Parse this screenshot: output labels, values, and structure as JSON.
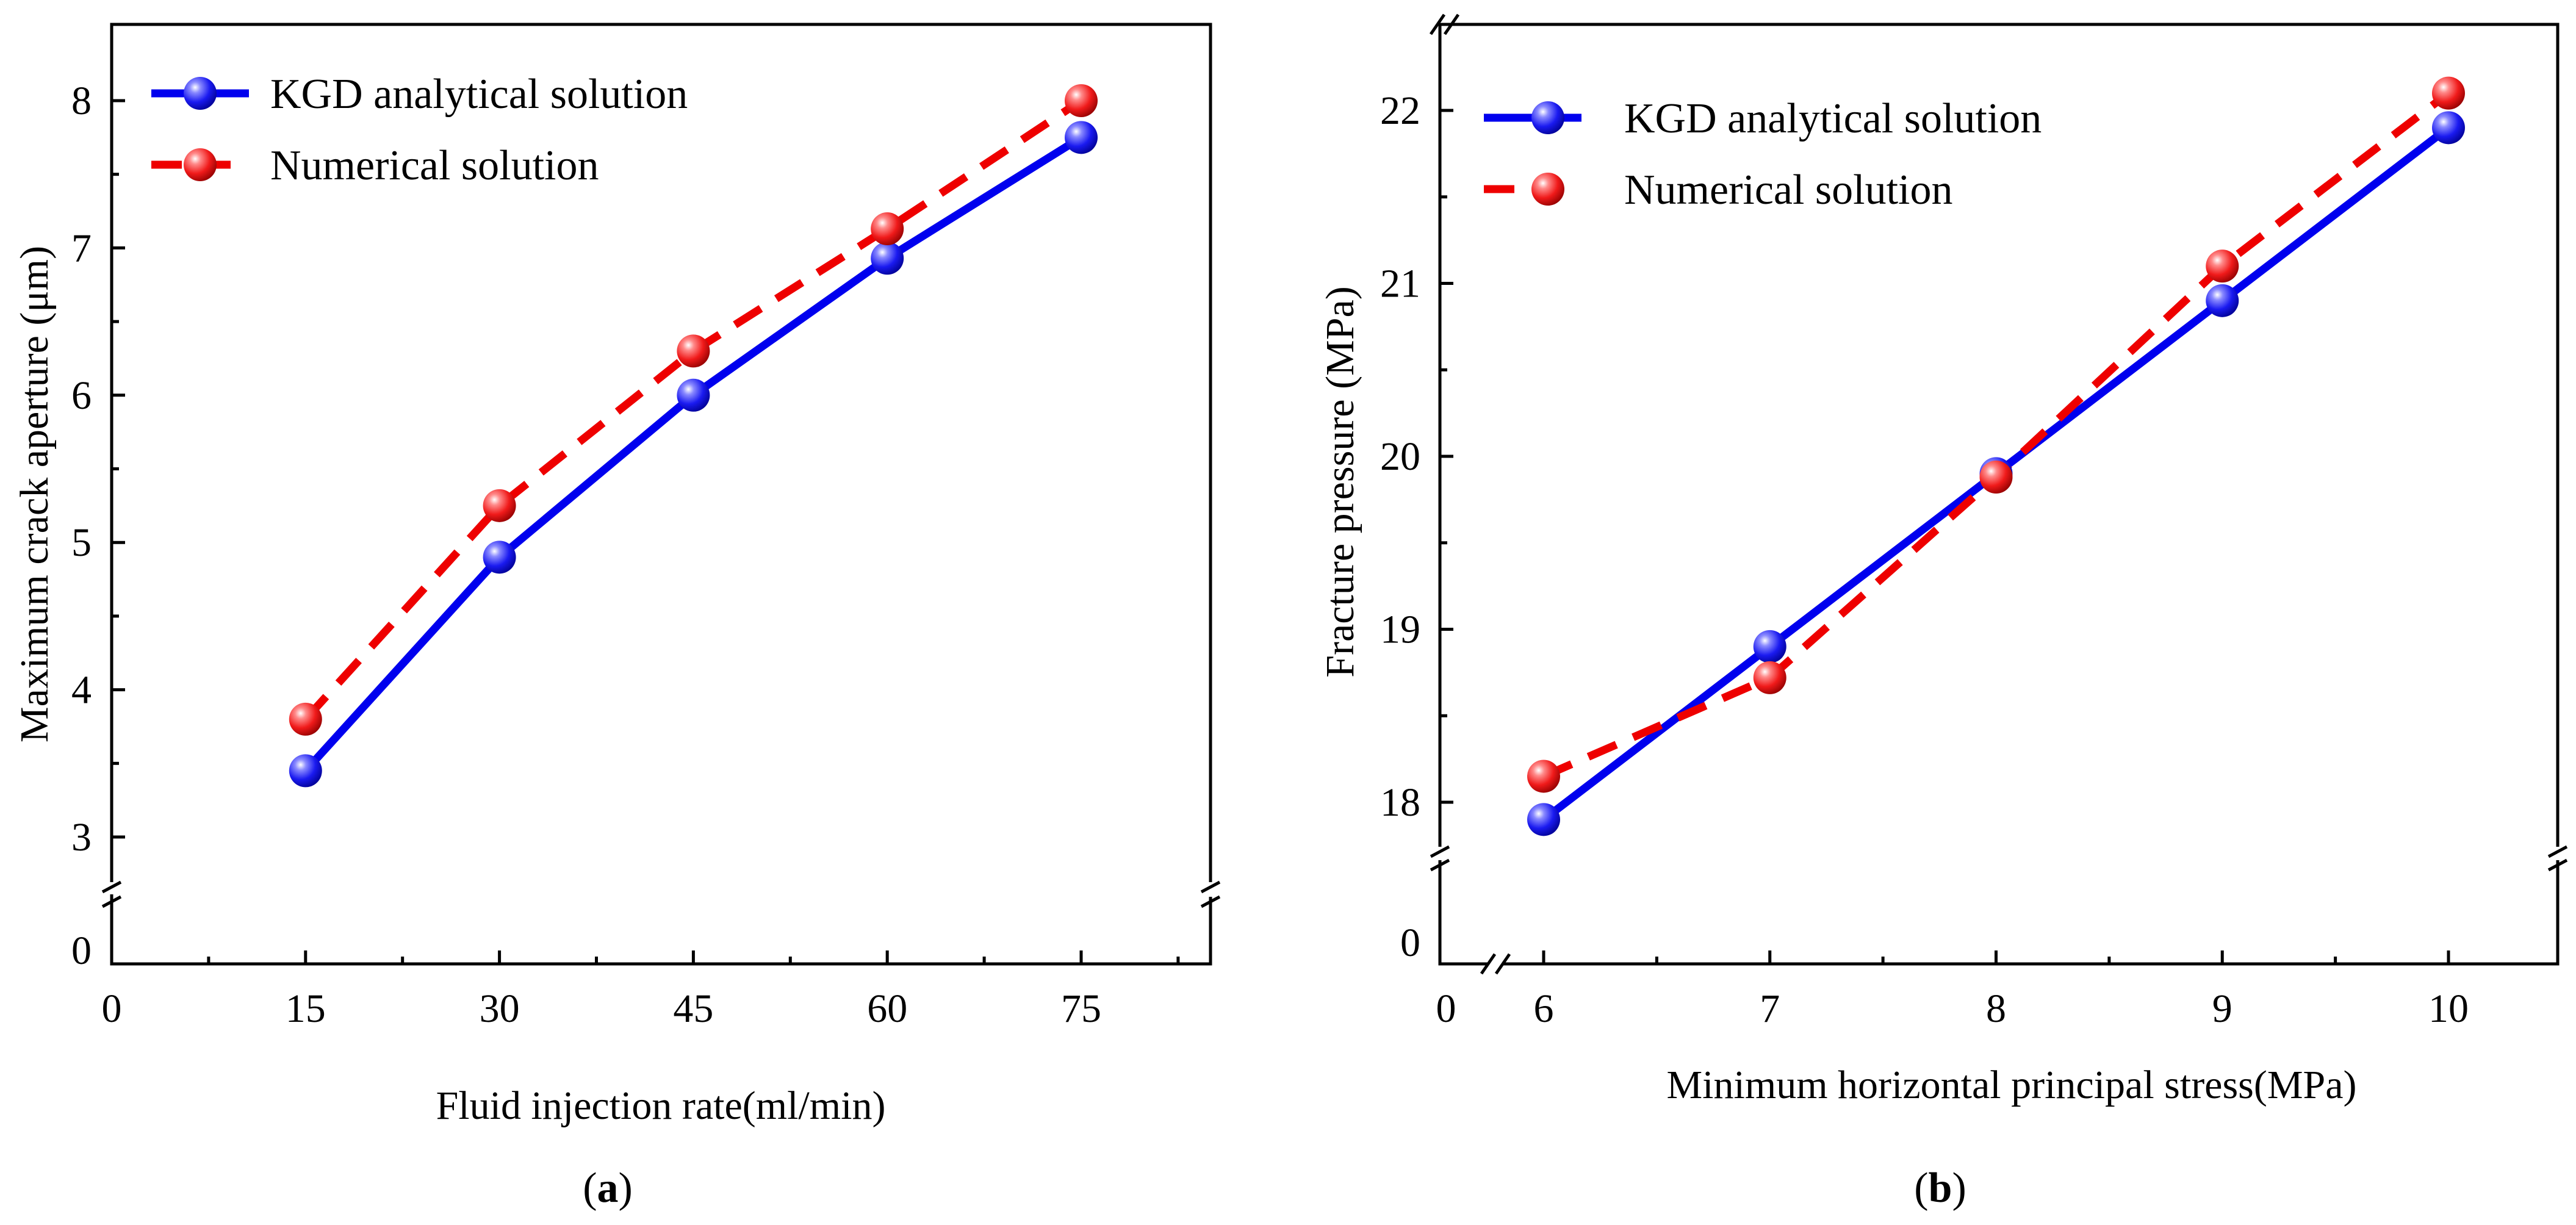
{
  "colors": {
    "kgd": "#0000ee",
    "numerical": "#ee0000"
  },
  "chart_data": [
    {
      "type": "line",
      "panel_label": "a",
      "xlabel": "Fluid injection rate(ml/min)",
      "ylabel": "Maximum crack aperture (μm)",
      "x": [
        15,
        30,
        45,
        60,
        75
      ],
      "series": [
        {
          "name": "KGD analytical solution",
          "style": "solid",
          "values": [
            3.45,
            4.9,
            6.0,
            6.93,
            7.75
          ]
        },
        {
          "name": "Numerical solution",
          "style": "dashed",
          "values": [
            3.8,
            5.25,
            6.3,
            7.13,
            8.0
          ]
        }
      ],
      "xlim": [
        0,
        85
      ],
      "ylim": [
        0,
        8.5
      ],
      "y_axis_break": [
        0,
        2.6
      ],
      "xticks": [
        "0",
        "15",
        "30",
        "45",
        "60",
        "75"
      ],
      "yticks": [
        "0",
        "3",
        "4",
        "5",
        "6",
        "7",
        "8"
      ],
      "legend": "top-left",
      "grid": false
    },
    {
      "type": "line",
      "panel_label": "b",
      "xlabel": "Minimum horizontal principal stress(MPa)",
      "ylabel": "Fracture pressure (MPa)",
      "x": [
        6,
        7,
        8,
        9,
        10
      ],
      "series": [
        {
          "name": "KGD analytical solution",
          "style": "solid",
          "values": [
            17.9,
            18.9,
            19.9,
            20.9,
            21.9
          ]
        },
        {
          "name": "Numerical solution",
          "style": "dashed",
          "values": [
            18.15,
            18.72,
            19.88,
            21.1,
            22.1
          ]
        }
      ],
      "xlim": [
        5.5,
        10.5
      ],
      "ylim": [
        17.5,
        22.5
      ],
      "x_axis_break": [
        0,
        5.8
      ],
      "y_axis_break": [
        0,
        17.5
      ],
      "xticks": [
        "0",
        "6",
        "7",
        "8",
        "9",
        "10"
      ],
      "yticks": [
        "0",
        "18",
        "19",
        "20",
        "21",
        "22"
      ],
      "legend": "top-left",
      "grid": false
    }
  ]
}
